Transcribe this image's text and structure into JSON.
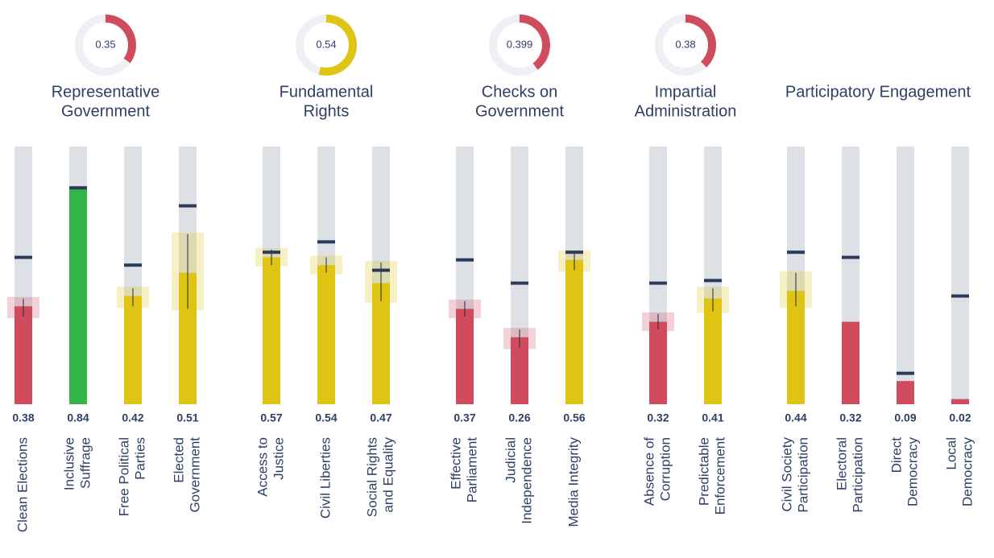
{
  "chart_data": {
    "type": "bar",
    "ylim": [
      0,
      1
    ],
    "groups": [
      {
        "title": [
          "Representative",
          "Government"
        ],
        "score": 0.35,
        "score_color": "#d14b5e",
        "bars": [
          {
            "label": [
              "Clean Elections"
            ],
            "value": 0.38,
            "color": "#d14b5e",
            "benchmark": 0.57,
            "ci": [
              0.34,
              0.41
            ]
          },
          {
            "label": [
              "Inclusive",
              "Suffrage"
            ],
            "value": 0.84,
            "color": "#35b44a",
            "benchmark": 0.84
          },
          {
            "label": [
              "Free Political",
              "Parties"
            ],
            "value": 0.42,
            "color": "#e0c414",
            "benchmark": 0.54,
            "ci": [
              0.38,
              0.45
            ]
          },
          {
            "label": [
              "Elected",
              "Government"
            ],
            "value": 0.51,
            "color": "#e0c414",
            "benchmark": 0.77,
            "ci": [
              0.37,
              0.66
            ]
          }
        ]
      },
      {
        "title": [
          "Fundamental",
          "Rights"
        ],
        "score": 0.54,
        "score_color": "#e0c414",
        "bars": [
          {
            "label": [
              "Access to",
              "Justice"
            ],
            "value": 0.57,
            "color": "#e0c414",
            "benchmark": 0.59,
            "ci": [
              0.54,
              0.6
            ]
          },
          {
            "label": [
              "Civil Liberties"
            ],
            "value": 0.54,
            "color": "#e0c414",
            "benchmark": 0.63,
            "ci": [
              0.51,
              0.57
            ]
          },
          {
            "label": [
              "Social Rights",
              "and Equality"
            ],
            "value": 0.47,
            "color": "#e0c414",
            "benchmark": 0.52,
            "ci": [
              0.4,
              0.55
            ]
          }
        ]
      },
      {
        "title": [
          "Checks on",
          "Government"
        ],
        "score": 0.399,
        "score_color": "#d14b5e",
        "bars": [
          {
            "label": [
              "Effective",
              "Parliament"
            ],
            "value": 0.37,
            "color": "#d14b5e",
            "benchmark": 0.56,
            "ci": [
              0.34,
              0.4
            ]
          },
          {
            "label": [
              "Judicial",
              "Independence"
            ],
            "value": 0.26,
            "color": "#d14b5e",
            "benchmark": 0.47,
            "ci": [
              0.22,
              0.29
            ]
          },
          {
            "label": [
              "Media Integrity"
            ],
            "value": 0.56,
            "color": "#e0c414",
            "benchmark": 0.59,
            "ci": [
              0.52,
              0.59
            ]
          }
        ]
      },
      {
        "title": [
          "Impartial",
          "Administration"
        ],
        "score": 0.38,
        "score_color": "#d14b5e",
        "bars": [
          {
            "label": [
              "Absence of",
              "Corruption"
            ],
            "value": 0.32,
            "color": "#d14b5e",
            "benchmark": 0.47,
            "ci": [
              0.29,
              0.35
            ]
          },
          {
            "label": [
              "Predictable",
              "Enforcement"
            ],
            "value": 0.41,
            "color": "#e0c414",
            "benchmark": 0.48,
            "ci": [
              0.36,
              0.45
            ]
          }
        ]
      },
      {
        "title": [
          "Participatory Engagement"
        ],
        "bars": [
          {
            "label": [
              "Civil Society",
              "Participation"
            ],
            "value": 0.44,
            "color": "#e0c414",
            "benchmark": 0.59,
            "ci": [
              0.38,
              0.51
            ]
          },
          {
            "label": [
              "Electoral",
              "Participation"
            ],
            "value": 0.32,
            "color": "#d14b5e",
            "benchmark": 0.57
          },
          {
            "label": [
              "Direct",
              "Democracy"
            ],
            "value": 0.09,
            "color": "#d14b5e",
            "benchmark": 0.12
          },
          {
            "label": [
              "Local",
              "Democracy"
            ],
            "value": 0.02,
            "color": "#d14b5e",
            "benchmark": 0.42
          }
        ]
      }
    ]
  }
}
